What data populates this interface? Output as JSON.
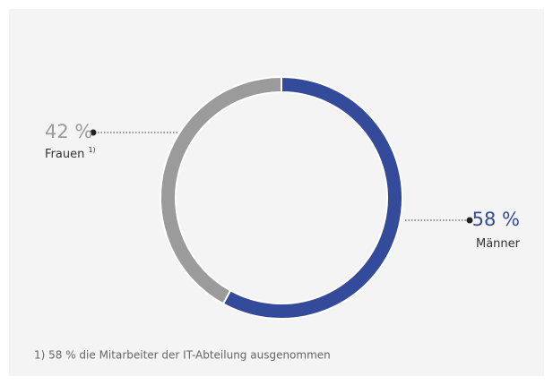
{
  "chart_data": {
    "type": "pie",
    "categories": [
      "Männer",
      "Frauen"
    ],
    "values": [
      58,
      42
    ],
    "value_labels": [
      "58 %",
      "42 %"
    ],
    "category_notes": [
      null,
      "1)"
    ],
    "colors": [
      "#344a9a",
      "#9b9b9b"
    ],
    "footnote": "1) 58 % die Mitarbeiter der IT-Abteilung ausgenommen"
  }
}
